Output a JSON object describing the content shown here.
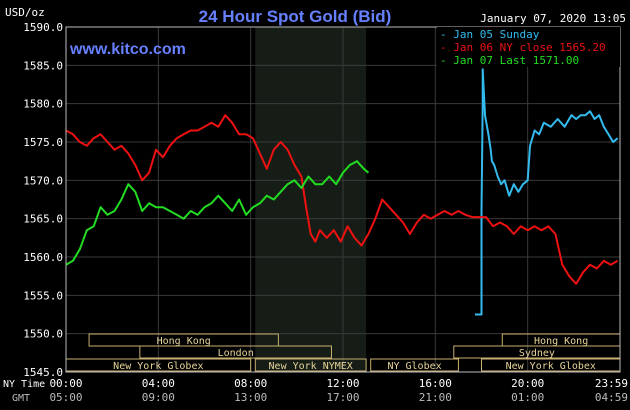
{
  "header": {
    "title": "24 Hour Spot Gold (Bid)",
    "watermark": "www.kitco.com",
    "datetime": "January 07, 2020 13:05",
    "unit": "USD/oz"
  },
  "chart_data": {
    "type": "line",
    "ylim": [
      1545,
      1590
    ],
    "y_ticks": [
      "1590.0",
      "1585.0",
      "1580.0",
      "1575.0",
      "1570.0",
      "1565.0",
      "1560.0",
      "1555.0",
      "1550.0",
      "1545.0"
    ],
    "x_ticks_ny": [
      "00:00",
      "04:00",
      "08:00",
      "12:00",
      "16:00",
      "20:00",
      "23:59"
    ],
    "x_ticks_gmt": [
      "05:00",
      "09:00",
      "13:00",
      "17:00",
      "21:00",
      "01:00",
      "04:59"
    ],
    "x_row_labels": {
      "ny": "NY Time",
      "gmt": "GMT"
    },
    "xlim_hours": [
      0,
      24
    ],
    "grid": true,
    "legend_position": "top-right",
    "series": [
      {
        "name": "Jan 05 Sunday",
        "color": "#33bbee",
        "x": [
          17.72,
          18.0,
          18.0,
          18.05,
          18.05,
          18.15,
          18.3,
          18.4,
          18.45,
          18.55,
          18.7,
          18.85,
          19.0,
          19.2,
          19.4,
          19.6,
          19.8,
          20.0,
          20.1,
          20.3,
          20.5,
          20.7,
          21.0,
          21.3,
          21.6,
          21.9,
          22.1,
          22.3,
          22.5,
          22.7,
          22.9,
          23.1,
          23.3,
          23.5,
          23.7,
          23.9
        ],
        "y": [
          1552.5,
          1552.5,
          1566.0,
          1580.0,
          1584.5,
          1578.5,
          1576.0,
          1574.0,
          1572.5,
          1572.0,
          1570.5,
          1569.5,
          1570.0,
          1568.0,
          1569.5,
          1568.5,
          1569.5,
          1570.0,
          1574.5,
          1576.5,
          1576.0,
          1577.5,
          1577.0,
          1578.0,
          1577.0,
          1578.5,
          1578.0,
          1578.5,
          1578.5,
          1579.0,
          1578.0,
          1578.5,
          1577.0,
          1576.0,
          1575.0,
          1575.5
        ]
      },
      {
        "name": "Jan 06 NY close 1565.20",
        "color": "#ee1111",
        "x": [
          0.0,
          0.3,
          0.6,
          0.9,
          1.2,
          1.5,
          1.8,
          2.1,
          2.4,
          2.7,
          3.0,
          3.3,
          3.6,
          3.9,
          4.2,
          4.5,
          4.8,
          5.1,
          5.4,
          5.7,
          6.0,
          6.3,
          6.6,
          6.9,
          7.2,
          7.5,
          7.8,
          8.1,
          8.4,
          8.7,
          9.0,
          9.3,
          9.6,
          9.9,
          10.2,
          10.4,
          10.6,
          10.8,
          11.0,
          11.3,
          11.6,
          11.9,
          12.2,
          12.5,
          12.8,
          13.1,
          13.4,
          13.7,
          14.0,
          14.3,
          14.6,
          14.9,
          15.2,
          15.5,
          15.8,
          16.1,
          16.4,
          16.7,
          17.0,
          17.3,
          17.6,
          17.9,
          18.2,
          18.5,
          18.8,
          19.1,
          19.4,
          19.7,
          20.0,
          20.3,
          20.6,
          20.9,
          21.2,
          21.5,
          21.8,
          22.1,
          22.4,
          22.7,
          23.0,
          23.3,
          23.6,
          23.9
        ],
        "y": [
          1576.5,
          1576.0,
          1575.0,
          1574.5,
          1575.5,
          1576.0,
          1575.0,
          1574.0,
          1574.5,
          1573.5,
          1572.0,
          1570.0,
          1571.0,
          1574.0,
          1573.0,
          1574.5,
          1575.5,
          1576.0,
          1576.5,
          1576.5,
          1577.0,
          1577.5,
          1577.0,
          1578.5,
          1577.5,
          1576.0,
          1576.0,
          1575.5,
          1573.5,
          1571.5,
          1574.0,
          1575.0,
          1574.0,
          1572.0,
          1570.5,
          1566.5,
          1563.0,
          1562.0,
          1563.5,
          1562.5,
          1563.5,
          1562.0,
          1564.0,
          1562.5,
          1561.5,
          1563.0,
          1565.0,
          1567.5,
          1566.5,
          1565.5,
          1564.5,
          1563.0,
          1564.5,
          1565.5,
          1565.0,
          1565.5,
          1566.0,
          1565.5,
          1566.0,
          1565.5,
          1565.2,
          1565.2,
          1565.2,
          1564.0,
          1564.5,
          1564.0,
          1563.0,
          1564.0,
          1563.5,
          1564.0,
          1563.5,
          1564.0,
          1563.0,
          1559.0,
          1557.5,
          1556.5,
          1558.0,
          1559.0,
          1558.5,
          1559.5,
          1559.0,
          1559.5
        ]
      },
      {
        "name": "Jan 07 Last 1571.00",
        "color": "#22dd22",
        "x": [
          0.0,
          0.3,
          0.6,
          0.9,
          1.2,
          1.5,
          1.8,
          2.1,
          2.4,
          2.7,
          3.0,
          3.3,
          3.6,
          3.9,
          4.2,
          4.5,
          4.8,
          5.1,
          5.4,
          5.7,
          6.0,
          6.3,
          6.6,
          6.9,
          7.2,
          7.5,
          7.8,
          8.1,
          8.4,
          8.7,
          9.0,
          9.3,
          9.6,
          9.9,
          10.2,
          10.5,
          10.8,
          11.1,
          11.4,
          11.7,
          12.0,
          12.3,
          12.6,
          12.9,
          13.1
        ],
        "y": [
          1559.0,
          1559.5,
          1561.0,
          1563.5,
          1564.0,
          1566.5,
          1565.5,
          1566.0,
          1567.5,
          1569.5,
          1568.5,
          1566.0,
          1567.0,
          1566.5,
          1566.5,
          1566.0,
          1565.5,
          1565.0,
          1566.0,
          1565.5,
          1566.5,
          1567.0,
          1568.0,
          1567.0,
          1566.0,
          1567.5,
          1565.5,
          1566.5,
          1567.0,
          1568.0,
          1567.5,
          1568.5,
          1569.5,
          1570.0,
          1569.0,
          1570.5,
          1569.5,
          1569.5,
          1570.5,
          1569.5,
          1571.0,
          1572.0,
          1572.5,
          1571.5,
          1571.0
        ]
      }
    ],
    "sessions": [
      {
        "label": "Hong Kong",
        "start": 1.0,
        "end": 9.2,
        "row": 0
      },
      {
        "label": "London",
        "start": 3.2,
        "end": 11.5,
        "row": 1
      },
      {
        "label": "New York Globex",
        "start": 0.0,
        "end": 8.0,
        "row": 2
      },
      {
        "label": "New York NYMEX",
        "start": 8.2,
        "end": 13.0,
        "row": 2
      },
      {
        "label": "NY Globex",
        "start": 13.2,
        "end": 17.0,
        "row": 2
      },
      {
        "label": "Hong Kong",
        "start": 18.9,
        "end": 24.0,
        "row": 0
      },
      {
        "label": "Sydney",
        "start": 16.8,
        "end": 24.0,
        "row": 1
      },
      {
        "label": "New York Globex",
        "start": 18.0,
        "end": 24.0,
        "row": 2
      }
    ],
    "nymex_shade_hours": [
      8.2,
      13.0
    ]
  }
}
